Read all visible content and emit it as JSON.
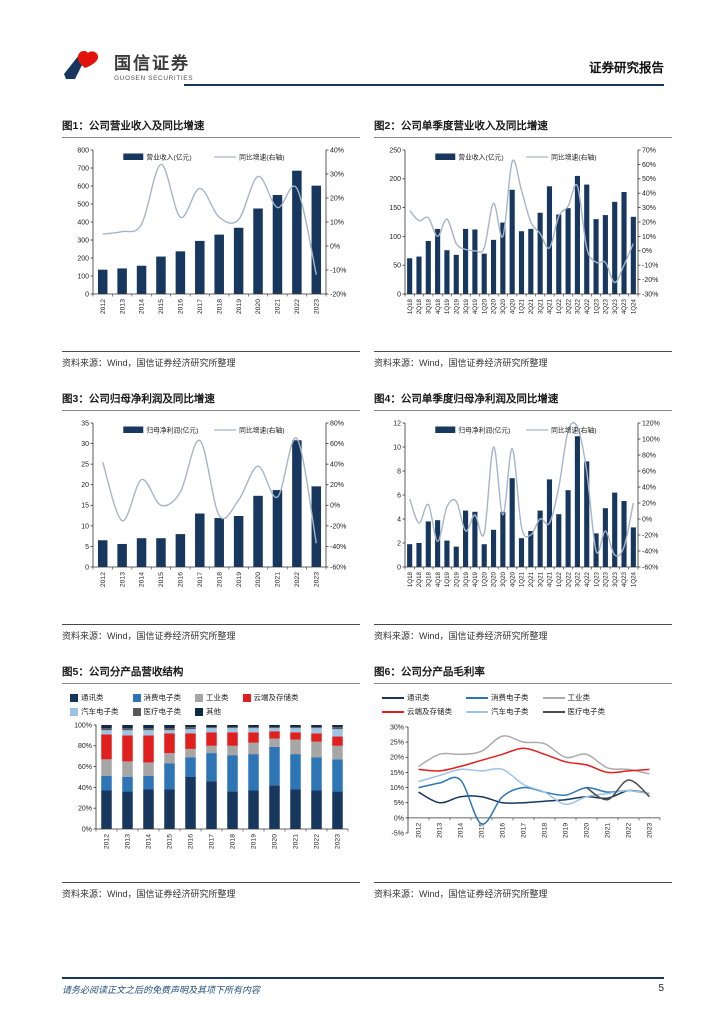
{
  "header": {
    "brand_cn": "国信证券",
    "brand_en": "GUOSEN SECURITIES",
    "report_type": "证券研究报告"
  },
  "footer": {
    "disclaimer": "请务必阅读正文之后的免费声明及其项下所有内容",
    "page_number": "5"
  },
  "colors": {
    "navy": "#17375E",
    "combo_line": "#A6B5C9",
    "blue": "#2E75B6",
    "light_blue": "#9DC3E6",
    "gray": "#A6A6A6",
    "dark_gray": "#595959",
    "red": "#E0201E",
    "rule_blue": "#17375E"
  },
  "figures": [
    {
      "title": "图1：公司营业收入及同比增速",
      "source": "资料来源：Wind，国信证券经济研究所整理"
    },
    {
      "title": "图2：公司单季度营业收入及同比增速",
      "source": "资料来源：Wind，国信证券经济研究所整理"
    },
    {
      "title": "图3：公司归母净利润及同比增速",
      "source": "资料来源：Wind，国信证券经济研究所整理"
    },
    {
      "title": "图4：公司单季度归母净利润及同比增速",
      "source": "资料来源：Wind，国信证券经济研究所整理"
    },
    {
      "title": "图5：公司分产品营收结构",
      "source": "资料来源：Wind，国信证券经济研究所整理"
    },
    {
      "title": "图6：公司分产品毛利率",
      "source": "资料来源：Wind，国信证券经济研究所整理"
    }
  ],
  "chart_data": [
    {
      "type": "bar-line",
      "title": "公司营业收入及同比增速",
      "categories": [
        "2012",
        "2013",
        "2014",
        "2015",
        "2016",
        "2017",
        "2018",
        "2019",
        "2020",
        "2021",
        "2022",
        "2023"
      ],
      "bar_series": {
        "name": "营业收入(亿元)",
        "color": "#17375E",
        "values": [
          135,
          142,
          157,
          208,
          237,
          295,
          330,
          368,
          475,
          550,
          685,
          602
        ]
      },
      "line_series": {
        "name": "同比增速(右轴)",
        "color": "#A6B5C9",
        "values": [
          5,
          6,
          9,
          34,
          12,
          24,
          12,
          11,
          29,
          16,
          24,
          -12
        ]
      },
      "left_axis": {
        "min": 0,
        "max": 800,
        "step": 100
      },
      "right_axis": {
        "min": -20,
        "max": 40,
        "step": 10,
        "format": "percent"
      }
    },
    {
      "type": "bar-line",
      "title": "公司单季度营业收入及同比增速",
      "categories": [
        "1Q18",
        "2Q18",
        "3Q18",
        "4Q18",
        "1Q19",
        "2Q19",
        "3Q19",
        "4Q19",
        "1Q20",
        "2Q20",
        "3Q20",
        "4Q20",
        "1Q21",
        "2Q21",
        "3Q21",
        "4Q21",
        "1Q22",
        "2Q22",
        "3Q22",
        "4Q22",
        "1Q23",
        "2Q23",
        "3Q23",
        "4Q23",
        "1Q24"
      ],
      "bar_series": {
        "name": "营业收入(亿元)",
        "color": "#17375E",
        "values": [
          62,
          65,
          92,
          113,
          76,
          68,
          113,
          112,
          70,
          94,
          124,
          181,
          109,
          113,
          141,
          187,
          138,
          149,
          205,
          190,
          130,
          137,
          160,
          177,
          134
        ]
      },
      "line_series": {
        "name": "同比增速(右轴)",
        "color": "#A6B5C9",
        "values": [
          28,
          21,
          23,
          10,
          22,
          5,
          1,
          0,
          2,
          33,
          10,
          62,
          42,
          20,
          12,
          2,
          24,
          31,
          45,
          2,
          -8,
          -8,
          -22,
          -10,
          5
        ]
      },
      "left_axis": {
        "min": 0,
        "max": 250,
        "step": 50
      },
      "right_axis": {
        "min": -30,
        "max": 70,
        "step": 10,
        "format": "percent"
      }
    },
    {
      "type": "bar-line",
      "title": "公司归母净利润及同比增速",
      "categories": [
        "2012",
        "2013",
        "2014",
        "2015",
        "2016",
        "2017",
        "2018",
        "2019",
        "2020",
        "2021",
        "2022",
        "2023"
      ],
      "bar_series": {
        "name": "归母净利润(亿元)",
        "color": "#17375E",
        "values": [
          6.5,
          5.6,
          7.0,
          7.0,
          8.0,
          13.0,
          11.9,
          12.4,
          17.3,
          18.7,
          30.8,
          19.6
        ]
      },
      "line_series": {
        "name": "同比增速(右轴)",
        "color": "#A6B5C9",
        "values": [
          42,
          -15,
          25,
          0,
          13,
          63,
          -10,
          5,
          38,
          8,
          65,
          -37
        ]
      },
      "left_axis": {
        "min": 0,
        "max": 35,
        "step": 5
      },
      "right_axis": {
        "min": -60,
        "max": 80,
        "step": 20,
        "format": "percent"
      }
    },
    {
      "type": "bar-line",
      "title": "公司单季度归母净利润及同比增速",
      "categories": [
        "1Q18",
        "2Q18",
        "3Q18",
        "4Q18",
        "1Q19",
        "2Q19",
        "3Q19",
        "4Q19",
        "1Q20",
        "2Q20",
        "3Q20",
        "4Q20",
        "1Q21",
        "2Q21",
        "3Q21",
        "4Q21",
        "1Q22",
        "2Q22",
        "3Q22",
        "4Q22",
        "1Q23",
        "2Q23",
        "3Q23",
        "4Q23",
        "1Q24"
      ],
      "bar_series": {
        "name": "归母净利润(亿元)",
        "color": "#17375E",
        "values": [
          1.9,
          2.0,
          3.8,
          3.9,
          2.2,
          1.7,
          4.7,
          4.6,
          1.9,
          3.1,
          4.6,
          7.4,
          2.4,
          3.0,
          4.7,
          7.3,
          4.4,
          6.4,
          10.9,
          8.8,
          2.8,
          4.9,
          6.2,
          5.5,
          3.3
        ]
      },
      "line_series": {
        "name": "同比增速(右轴)",
        "color": "#A6B5C9",
        "values": [
          25,
          -5,
          18,
          -28,
          15,
          22,
          -15,
          5,
          -18,
          90,
          5,
          88,
          -10,
          -20,
          0,
          -5,
          40,
          110,
          115,
          60,
          -40,
          -15,
          -45,
          -35,
          20
        ]
      },
      "left_axis": {
        "min": 0,
        "max": 12,
        "step": 2
      },
      "right_axis": {
        "min": -60,
        "max": 120,
        "step": 20,
        "format": "percent"
      }
    },
    {
      "type": "stacked-bar-100",
      "title": "公司分产品营收结构",
      "categories": [
        "2012",
        "2013",
        "2014",
        "2015",
        "2016",
        "2017",
        "2018",
        "2019",
        "2020",
        "2021",
        "2022",
        "2023"
      ],
      "series": [
        {
          "name": "通讯类",
          "color": "#17375E",
          "values": [
            37,
            36,
            38,
            38,
            50,
            46,
            36,
            37,
            42,
            38,
            37,
            36
          ]
        },
        {
          "name": "消费电子类",
          "color": "#2E75B6",
          "values": [
            14,
            14,
            13,
            25,
            19,
            27,
            35,
            35,
            37,
            34,
            32,
            31
          ]
        },
        {
          "name": "工业类",
          "color": "#A6A6A6",
          "values": [
            16,
            15,
            13,
            10,
            8,
            7,
            9,
            11,
            8,
            14,
            15,
            13
          ]
        },
        {
          "name": "云端及存储类",
          "color": "#E0201E",
          "values": [
            24,
            25,
            26,
            19,
            15,
            13,
            13,
            10,
            7,
            7,
            8,
            9
          ]
        },
        {
          "name": "汽车电子类",
          "color": "#9DC3E6",
          "values": [
            4,
            5,
            5,
            3,
            4,
            4,
            4,
            4,
            3,
            4,
            5,
            7
          ]
        },
        {
          "name": "医疗电子类",
          "color": "#595959",
          "values": [
            2,
            2,
            2,
            2,
            2,
            1,
            1,
            1,
            1,
            1,
            1,
            2
          ]
        },
        {
          "name": "其他",
          "color": "#0E2A47",
          "values": [
            3,
            3,
            3,
            3,
            2,
            2,
            2,
            2,
            2,
            2,
            2,
            2
          ]
        }
      ],
      "y_axis": {
        "min": 0,
        "max": 100,
        "step": 20,
        "format": "percent"
      },
      "legend_cols": 4
    },
    {
      "type": "line",
      "title": "公司分产品毛利率",
      "categories": [
        "2012",
        "2013",
        "2014",
        "2015",
        "2016",
        "2017",
        "2018",
        "2019",
        "2020",
        "2021",
        "2022",
        "2023"
      ],
      "series": [
        {
          "name": "通讯类",
          "color": "#17375E",
          "values": [
            8.5,
            5,
            7,
            7,
            5,
            5,
            5.5,
            6,
            7,
            6.5,
            9,
            8
          ]
        },
        {
          "name": "消费电子类",
          "color": "#2E75B6",
          "values": [
            10,
            11.5,
            12.5,
            -2,
            7,
            10,
            8.5,
            7.5,
            10,
            8.5,
            9,
            8
          ]
        },
        {
          "name": "工业类",
          "color": "#ABABAB",
          "values": [
            17,
            21,
            21,
            22,
            27,
            25,
            24.5,
            20,
            21,
            16.5,
            16,
            14.5
          ]
        },
        {
          "name": "云端及存储类",
          "color": "#E0201E",
          "values": [
            16,
            15.5,
            17,
            19,
            21,
            23,
            21,
            18.5,
            17.5,
            15,
            15.5,
            16
          ]
        },
        {
          "name": "汽车电子类",
          "color": "#9DC3E6",
          "values": [
            12,
            14,
            16,
            15.5,
            16,
            11,
            8.5,
            4.5,
            7,
            8,
            9,
            8
          ]
        },
        {
          "name": "医疗电子类",
          "color": "#4D4D4D",
          "values": [
            null,
            null,
            null,
            null,
            null,
            null,
            null,
            null,
            10,
            6,
            12.5,
            7
          ]
        }
      ],
      "y_axis": {
        "min": -5,
        "max": 30,
        "step": 5,
        "format": "percent"
      },
      "legend_cols": 3
    }
  ]
}
